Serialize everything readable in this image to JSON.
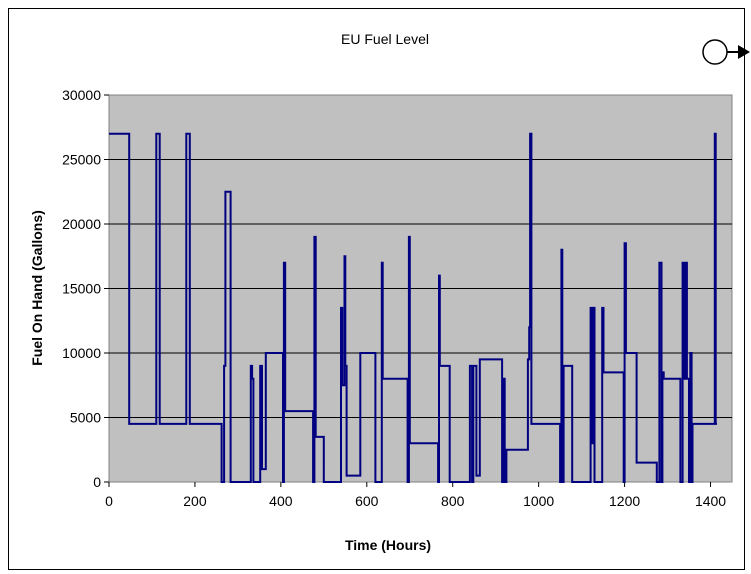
{
  "chart_data": {
    "type": "line",
    "title": "EU Fuel Level",
    "xlabel": "Time (Hours)",
    "ylabel": "Fuel On Hand (Gallons)",
    "xlim": [
      0,
      1450
    ],
    "ylim": [
      0,
      30000
    ],
    "xticks": [
      0,
      200,
      400,
      600,
      800,
      1000,
      1200,
      1400
    ],
    "yticks": [
      0,
      5000,
      10000,
      15000,
      20000,
      25000,
      30000
    ],
    "grid": true,
    "plot_background": "#c0c0c0",
    "series": [
      {
        "color": "#000080",
        "step": true,
        "x": [
          0,
          47,
          110,
          118,
          180,
          188,
          262,
          268,
          271,
          283,
          296,
          330,
          333,
          336,
          338,
          352,
          356,
          363,
          365,
          405,
          407,
          410,
          475,
          478,
          481,
          500,
          520,
          540,
          543,
          548,
          550,
          553,
          555,
          585,
          620,
          630,
          635,
          637,
          640,
          695,
          698,
          700,
          703,
          766,
          768,
          770,
          773,
          793,
          840,
          845,
          848,
          855,
          863,
          865,
          915,
          918,
          921,
          925,
          975,
          978,
          980,
          983,
          985,
          1050,
          1053,
          1055,
          1058,
          1061,
          1078,
          1118,
          1121,
          1124,
          1127,
          1130,
          1145,
          1148,
          1151,
          1198,
          1200,
          1203,
          1212,
          1228,
          1258,
          1275,
          1278,
          1281,
          1286,
          1288,
          1291,
          1300,
          1330,
          1335,
          1338,
          1341,
          1343,
          1345,
          1350,
          1353,
          1356,
          1358,
          1410,
          1412,
          1415
        ],
        "y": [
          27000,
          4500,
          27000,
          4500,
          27000,
          4500,
          0,
          9000,
          22500,
          0,
          0,
          9000,
          8000,
          0,
          0,
          9000,
          1000,
          1000,
          10000,
          0,
          17000,
          5500,
          0,
          19000,
          3500,
          0,
          0,
          13500,
          7500,
          17500,
          9000,
          500,
          500,
          10000,
          0,
          0,
          17000,
          8000,
          8000,
          0,
          19000,
          3000,
          3000,
          0,
          16000,
          9000,
          9000,
          0,
          9000,
          0,
          9000,
          500,
          9500,
          9500,
          0,
          8000,
          0,
          2500,
          9500,
          12000,
          27000,
          4500,
          4500,
          0,
          18000,
          0,
          9000,
          9000,
          0,
          0,
          13500,
          3000,
          13500,
          0,
          0,
          13500,
          8500,
          0,
          18500,
          10000,
          10000,
          1500,
          1500,
          0,
          0,
          17000,
          0,
          8500,
          8000,
          8000,
          0,
          17000,
          8000,
          17000,
          17000,
          8000,
          0,
          10000,
          0,
          4500,
          27000,
          4500,
          4500
        ]
      }
    ]
  },
  "legend_marker": {
    "icon": "circle-arrow-icon",
    "color": "#000000"
  }
}
